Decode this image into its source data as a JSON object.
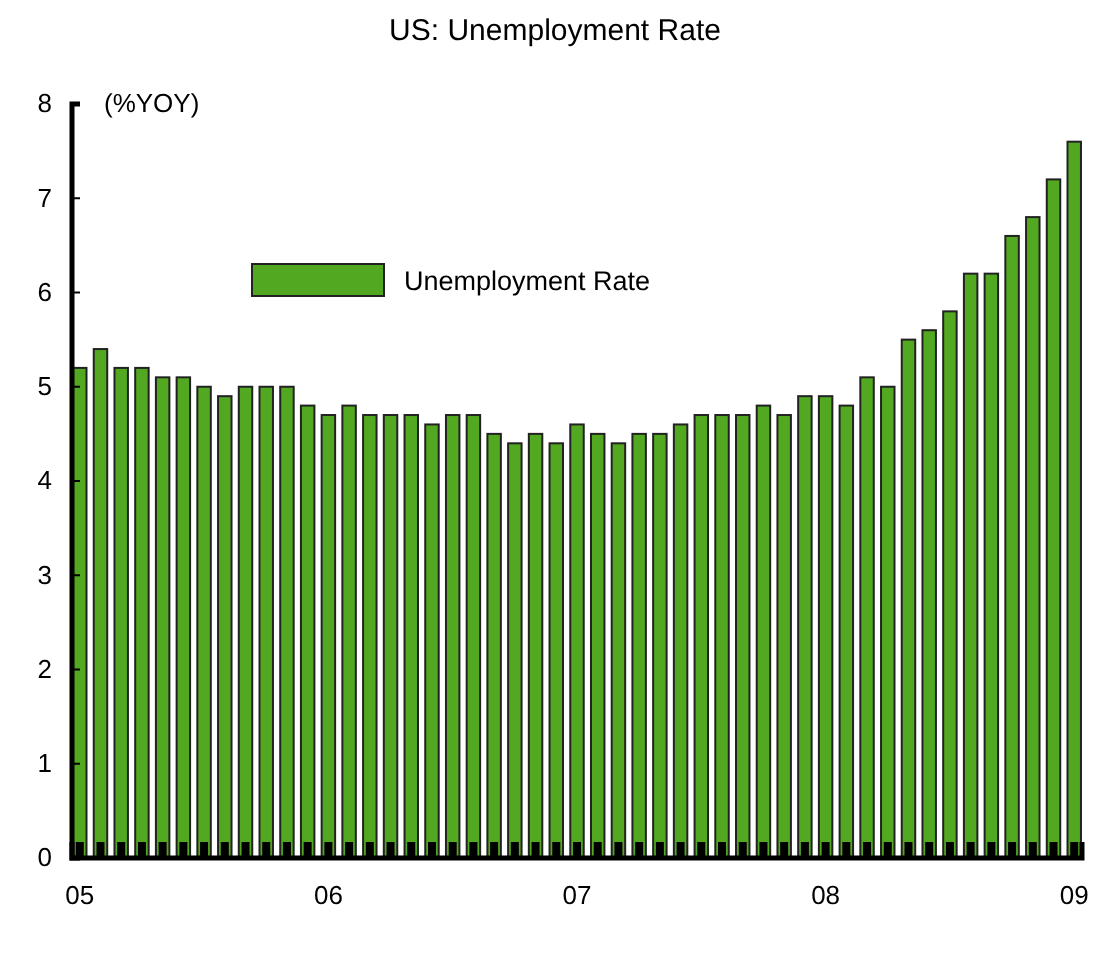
{
  "chart_data": {
    "type": "bar",
    "title": "US: Unemployment Rate",
    "ylabel": "(%YOY)",
    "categories": [
      "05",
      null,
      null,
      null,
      null,
      null,
      null,
      null,
      null,
      null,
      null,
      null,
      "06",
      null,
      null,
      null,
      null,
      null,
      null,
      null,
      null,
      null,
      null,
      null,
      "07",
      null,
      null,
      null,
      null,
      null,
      null,
      null,
      null,
      null,
      null,
      null,
      "08",
      null,
      null,
      null,
      null,
      null,
      null,
      null,
      null,
      null,
      null,
      null,
      "09"
    ],
    "series": [
      {
        "name": "Unemployment Rate",
        "color": "#52a820",
        "values": [
          5.2,
          5.4,
          5.2,
          5.2,
          5.1,
          5.1,
          5.0,
          4.9,
          5.0,
          5.0,
          5.0,
          4.8,
          4.7,
          4.8,
          4.7,
          4.7,
          4.7,
          4.6,
          4.7,
          4.7,
          4.5,
          4.4,
          4.5,
          4.4,
          4.6,
          4.5,
          4.4,
          4.5,
          4.5,
          4.6,
          4.7,
          4.7,
          4.7,
          4.8,
          4.7,
          4.9,
          4.9,
          4.8,
          5.1,
          5.0,
          5.5,
          5.6,
          5.8,
          6.2,
          6.2,
          6.6,
          6.8,
          7.2,
          7.6
        ]
      }
    ],
    "ylim": [
      0,
      8
    ],
    "yticks": [
      0,
      1,
      2,
      3,
      4,
      5,
      6,
      7,
      8
    ],
    "grid": false,
    "legend": "top left"
  }
}
